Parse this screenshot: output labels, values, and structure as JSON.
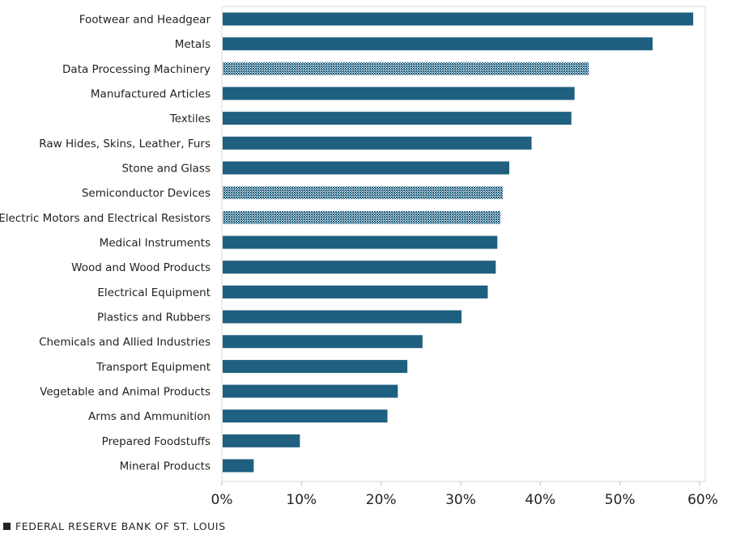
{
  "chart_data": {
    "type": "bar",
    "orientation": "horizontal",
    "categories": [
      "Footwear and Headgear",
      "Metals",
      "Data Processing Machinery",
      "Manufactured Articles",
      "Textiles",
      "Raw Hides, Skins, Leather, Furs",
      "Stone and Glass",
      "Semiconductor Devices",
      "Electric Motors and Electrical Resistors",
      "Medical Instruments",
      "Wood and Wood Products",
      "Electrical Equipment",
      "Plastics and Rubbers",
      "Chemicals and Allied Industries",
      "Transport Equipment",
      "Vegetable and Animal Products",
      "Arms and Ammunition",
      "Prepared Foodstuffs",
      "Mineral Products"
    ],
    "values": [
      59.2,
      54.1,
      46.1,
      44.3,
      43.9,
      38.9,
      36.1,
      35.3,
      35.0,
      34.6,
      34.4,
      33.4,
      30.1,
      25.2,
      23.3,
      22.1,
      20.8,
      9.8,
      4.0
    ],
    "patterned": [
      false,
      false,
      true,
      false,
      false,
      false,
      false,
      true,
      true,
      false,
      false,
      false,
      false,
      false,
      false,
      false,
      false,
      false,
      false
    ],
    "xlim": [
      0,
      60
    ],
    "xticks": [
      0,
      10,
      20,
      30,
      40,
      50,
      60
    ],
    "xtick_labels": [
      "0%",
      "10%",
      "20%",
      "30%",
      "40%",
      "50%",
      "60%"
    ],
    "title": "",
    "xlabel": "",
    "ylabel": "",
    "colors": {
      "bar": "#1f5f7f",
      "pattern_dot": "#1f5f7f",
      "pattern_bg": "#ffffff"
    }
  },
  "footer": {
    "source": "FEDERAL RESERVE BANK OF ST. LOUIS"
  }
}
